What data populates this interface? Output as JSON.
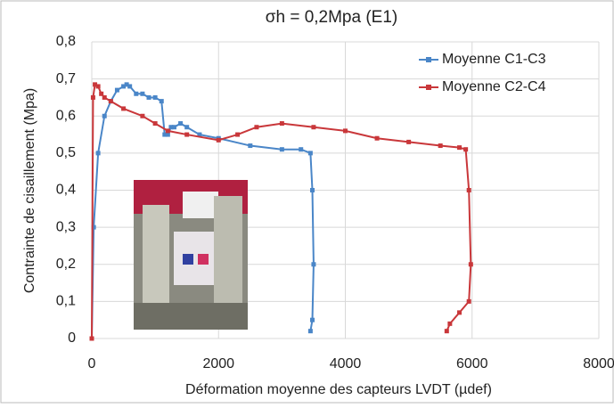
{
  "chart_data": {
    "type": "line",
    "title": "σh = 0,2Mpa (E1)",
    "x_label": "Déformation moyenne des capteurs LVDT (µdef)",
    "y_label": "Contrainte de cisaillement (Mpa)",
    "xlim": [
      0,
      8000
    ],
    "xticks": [
      0,
      2000,
      4000,
      6000,
      8000
    ],
    "ylim": [
      0,
      0.8
    ],
    "yticks": [
      {
        "value": 0,
        "label": "0"
      },
      {
        "value": 0.1,
        "label": "0,1"
      },
      {
        "value": 0.2,
        "label": "0,2"
      },
      {
        "value": 0.3,
        "label": "0,3"
      },
      {
        "value": 0.4,
        "label": "0,4"
      },
      {
        "value": 0.5,
        "label": "0,5"
      },
      {
        "value": 0.6,
        "label": "0,6"
      },
      {
        "value": 0.7,
        "label": "0,7"
      },
      {
        "value": 0.8,
        "label": "0,8"
      }
    ],
    "grid": true,
    "legend": "top-right",
    "series": [
      {
        "name": "Moyenne C1-C3",
        "color": "#4a86c8",
        "x": [
          0,
          30,
          100,
          200,
          300,
          400,
          500,
          550,
          600,
          700,
          800,
          900,
          1000,
          1100,
          1150,
          1200,
          1250,
          1300,
          1400,
          1500,
          1700,
          2000,
          2500,
          3000,
          3300,
          3450,
          3480,
          3500,
          3480,
          3450
        ],
        "values": [
          0,
          0.3,
          0.5,
          0.6,
          0.64,
          0.67,
          0.68,
          0.685,
          0.68,
          0.66,
          0.66,
          0.65,
          0.65,
          0.64,
          0.55,
          0.55,
          0.57,
          0.57,
          0.58,
          0.57,
          0.55,
          0.54,
          0.52,
          0.51,
          0.51,
          0.5,
          0.4,
          0.2,
          0.05,
          0.02
        ]
      },
      {
        "name": "Moyenne C2-C4",
        "color": "#c9373a",
        "x": [
          0,
          20,
          50,
          100,
          150,
          200,
          300,
          500,
          800,
          1000,
          1200,
          1500,
          2000,
          2300,
          2600,
          3000,
          3500,
          4000,
          4500,
          5000,
          5500,
          5800,
          5900,
          5950,
          5980,
          5950,
          5800,
          5650,
          5600
        ],
        "values": [
          0,
          0.65,
          0.685,
          0.68,
          0.66,
          0.65,
          0.64,
          0.62,
          0.6,
          0.58,
          0.56,
          0.55,
          0.535,
          0.55,
          0.57,
          0.58,
          0.57,
          0.56,
          0.54,
          0.53,
          0.52,
          0.515,
          0.51,
          0.4,
          0.2,
          0.1,
          0.07,
          0.04,
          0.02
        ]
      }
    ]
  }
}
